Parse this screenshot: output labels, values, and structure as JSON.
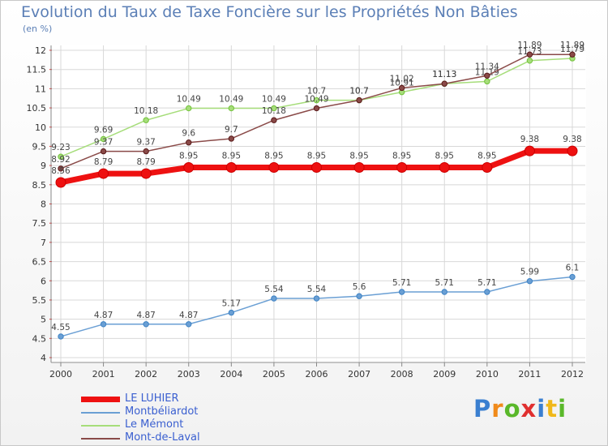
{
  "page": {
    "title": "Evolution du Taux de Taxe Foncière sur les Propriétés Non Bâties",
    "unit": "(en %)",
    "logo": "Proxiti"
  },
  "colors": {
    "title": "#5b7fb6",
    "grid": "#d8d8d8",
    "axis": "#888888",
    "tick_red": "#e03030"
  },
  "chart_data": {
    "type": "line",
    "x": [
      "2000",
      "2001",
      "2002",
      "2003",
      "2004",
      "2005",
      "2006",
      "2007",
      "2008",
      "2009",
      "2010",
      "2011",
      "2012"
    ],
    "ylim": [
      4,
      12
    ],
    "yticks": [
      "4",
      "4.5",
      "5",
      "5.5",
      "6",
      "6.5",
      "7",
      "7.5",
      "8",
      "8.5",
      "9",
      "9.5",
      "10",
      "10.5",
      "11",
      "11.5",
      "12"
    ],
    "grid": true,
    "legend_placement": "bottom-left",
    "series": [
      {
        "name": "LE LUHIER",
        "color": "#ee1111",
        "point_color": "#cc0000",
        "width": 7,
        "values": [
          8.56,
          8.79,
          8.79,
          8.95,
          8.95,
          8.95,
          8.95,
          8.95,
          8.95,
          8.95,
          8.95,
          9.38,
          9.38
        ],
        "labels": [
          "8.56",
          "8.79",
          "8.79",
          "8.95",
          "8.95",
          "8.95",
          "8.95",
          "8.95",
          "8.95",
          "8.95",
          "8.95",
          "9.38",
          "9.38"
        ]
      },
      {
        "name": "Montbéliardot",
        "color": "#6a9fd4",
        "point_color": "#3d82c4",
        "width": 1.5,
        "values": [
          4.55,
          4.87,
          4.87,
          4.87,
          5.17,
          5.54,
          5.54,
          5.6,
          5.71,
          5.71,
          5.71,
          5.99,
          6.1
        ],
        "labels": [
          "4.55",
          "4.87",
          "4.87",
          "4.87",
          "5.17",
          "5.54",
          "5.54",
          "5.6",
          "5.71",
          "5.71",
          "5.71",
          "5.99",
          "6.1"
        ]
      },
      {
        "name": "Le Mémont",
        "color": "#a6dd7a",
        "point_color": "#72c23a",
        "width": 1.5,
        "values": [
          9.23,
          9.69,
          10.18,
          10.49,
          10.49,
          10.49,
          10.7,
          10.7,
          10.91,
          11.13,
          11.19,
          11.73,
          11.79
        ],
        "labels": [
          "9.23",
          "9.69",
          "10.18",
          "10.49",
          "10.49",
          "10.49",
          "10.7",
          "10.7",
          "10.91",
          "11.13",
          "11.19",
          "11.73",
          "11.79"
        ]
      },
      {
        "name": "Mont-de-Laval",
        "color": "#8a4a48",
        "point_color": "#5a1a1a",
        "width": 1.5,
        "values": [
          8.92,
          9.37,
          9.37,
          9.6,
          9.7,
          10.18,
          10.49,
          10.7,
          11.02,
          11.13,
          11.34,
          11.89,
          11.89
        ],
        "labels": [
          "8.92",
          "9.37",
          "9.37",
          "9.6",
          "9.7",
          "10.18",
          "10.49",
          "10.7",
          "11.02",
          "11.13",
          "11.34",
          "11.89",
          "11.89"
        ]
      }
    ]
  }
}
